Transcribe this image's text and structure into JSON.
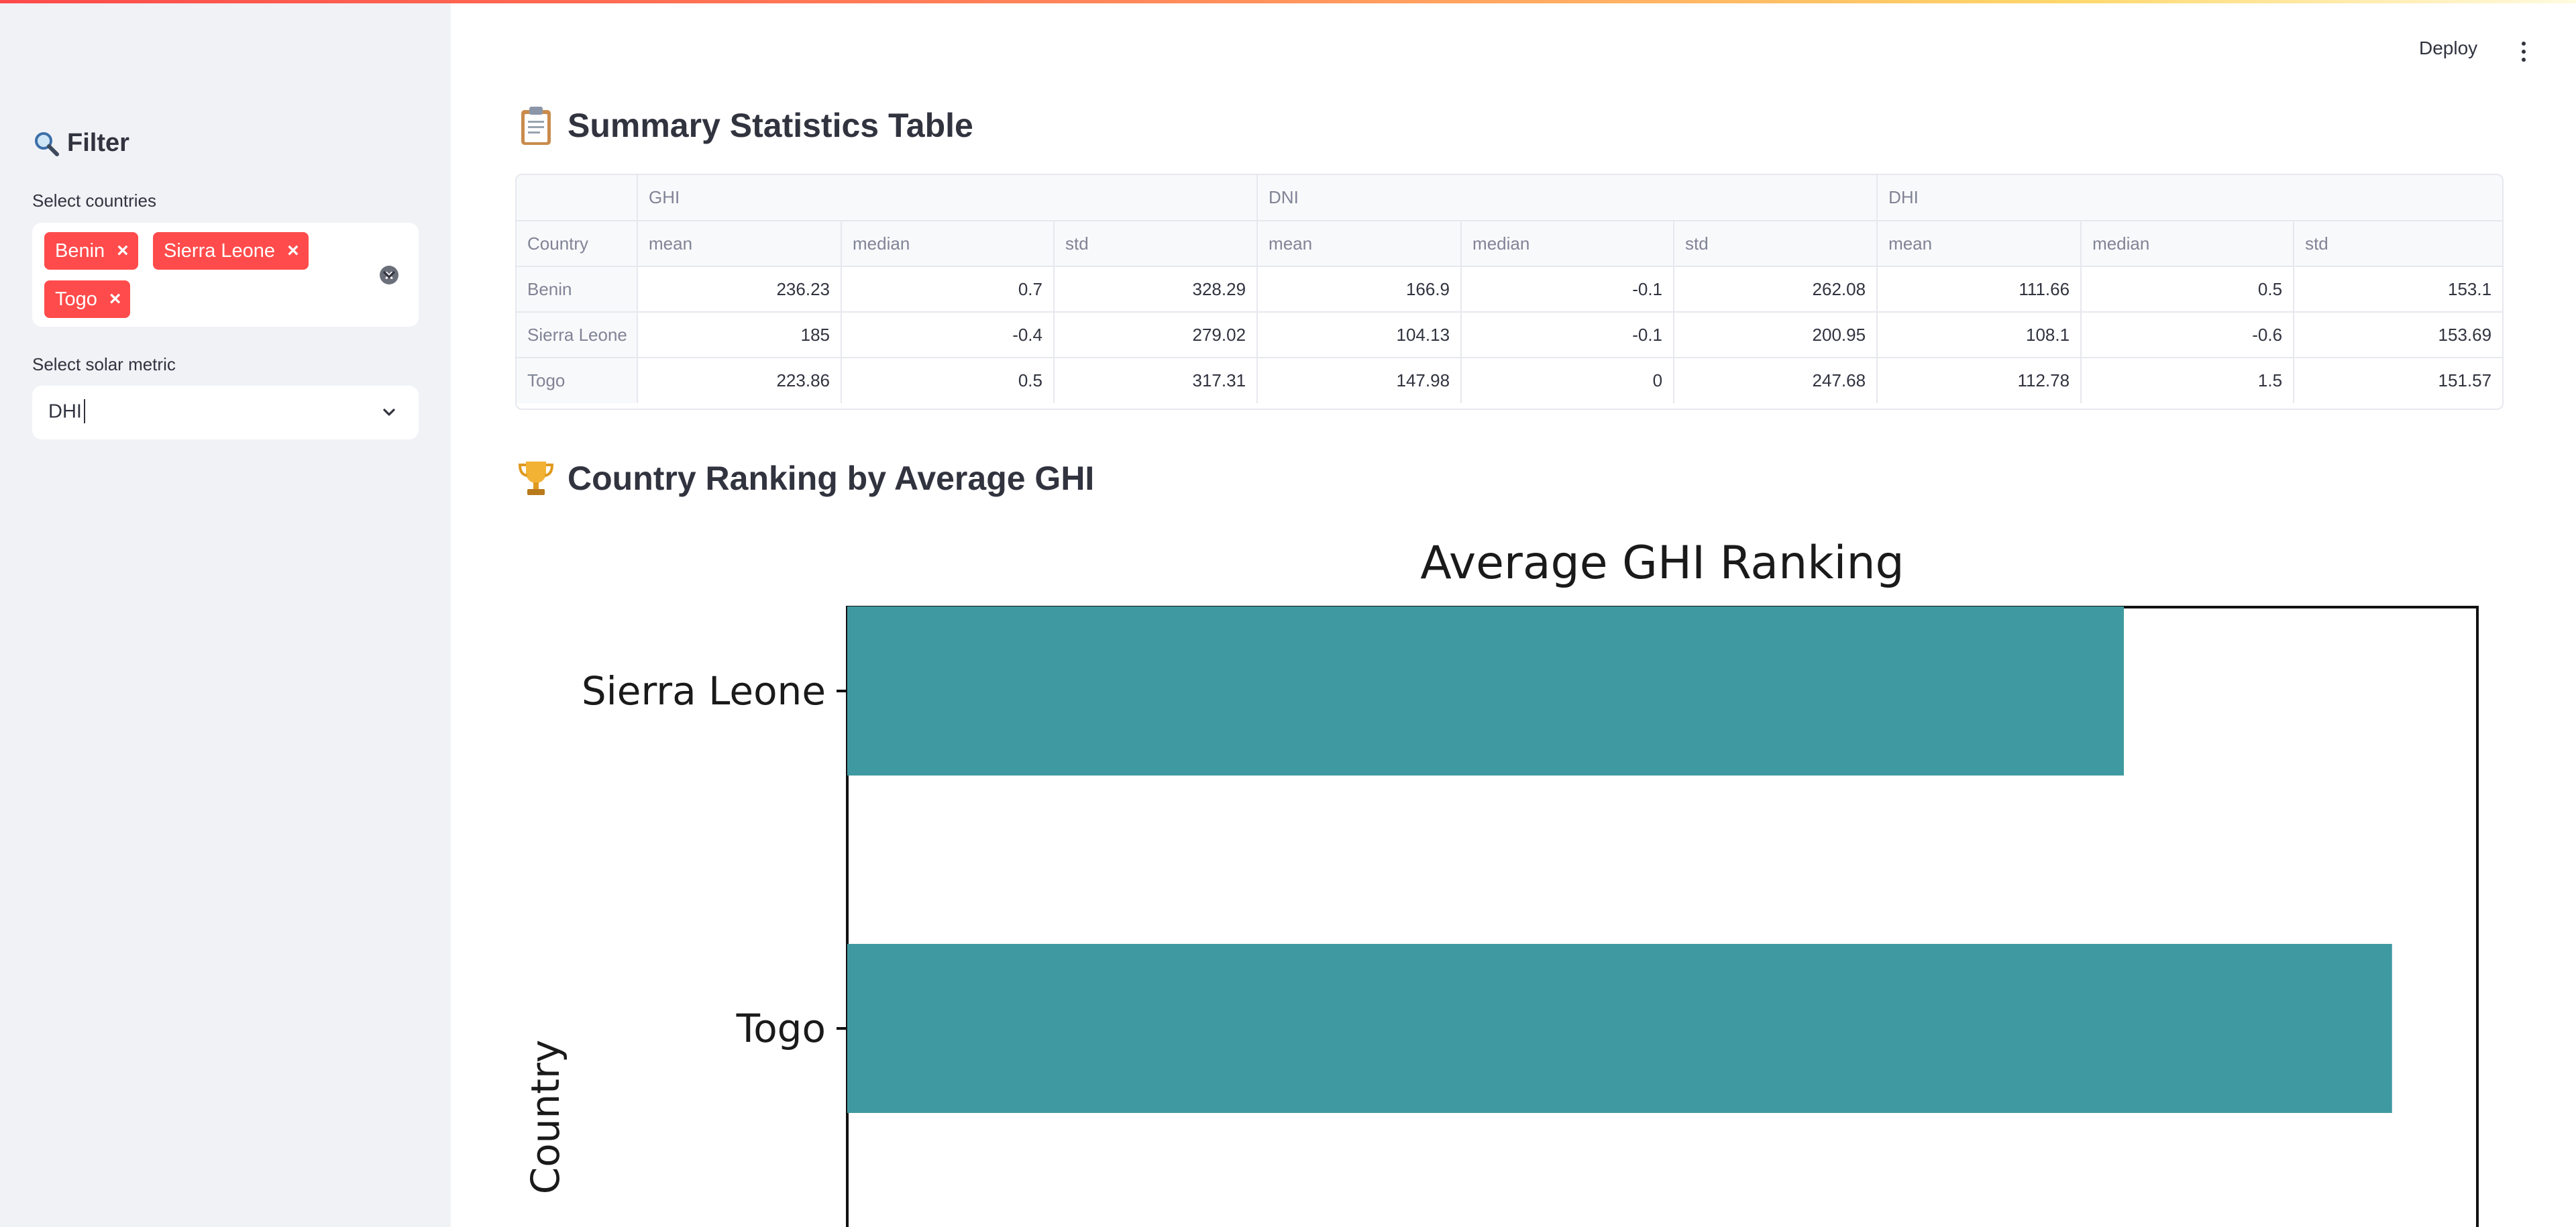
{
  "sidebar": {
    "heading": "Filter",
    "heading_icon": "magnifier-icon",
    "countries_label": "Select countries",
    "selected_countries": [
      "Benin",
      "Sierra Leone",
      "Togo"
    ],
    "metric_label": "Select solar metric",
    "metric_value": "DHI"
  },
  "header": {
    "deploy_label": "Deploy"
  },
  "summary": {
    "title": "Summary Statistics Table",
    "title_icon": "clipboard-icon",
    "group_headers": [
      "GHI",
      "DNI",
      "DHI"
    ],
    "index_label": "Country",
    "stat_headers": [
      "mean",
      "median",
      "std",
      "mean",
      "median",
      "std",
      "mean",
      "median",
      "std"
    ],
    "rows": [
      {
        "country": "Benin",
        "values": [
          "236.23",
          "0.7",
          "328.29",
          "166.9",
          "-0.1",
          "262.08",
          "111.66",
          "0.5",
          "153.1"
        ]
      },
      {
        "country": "Sierra Leone",
        "values": [
          "185",
          "-0.4",
          "279.02",
          "104.13",
          "-0.1",
          "200.95",
          "108.1",
          "-0.6",
          "153.69"
        ]
      },
      {
        "country": "Togo",
        "values": [
          "223.86",
          "0.5",
          "317.31",
          "147.98",
          "0",
          "247.68",
          "112.78",
          "1.5",
          "151.57"
        ]
      }
    ]
  },
  "ranking": {
    "title": "Country Ranking by Average GHI",
    "title_icon": "trophy-icon"
  },
  "chart_data": {
    "type": "bar",
    "orientation": "horizontal",
    "title": "Average GHI Ranking",
    "ylabel": "Country",
    "xlabel": "",
    "categories": [
      "Sierra Leone",
      "Togo"
    ],
    "values": [
      185,
      223.86
    ],
    "xlim": [
      0,
      236.23
    ],
    "bar_color": "#3e9aa0",
    "grid": false
  },
  "colors": {
    "accent": "#ff4b4b",
    "sidebar_bg": "#f0f2f6",
    "bar": "#3e9aa0"
  }
}
